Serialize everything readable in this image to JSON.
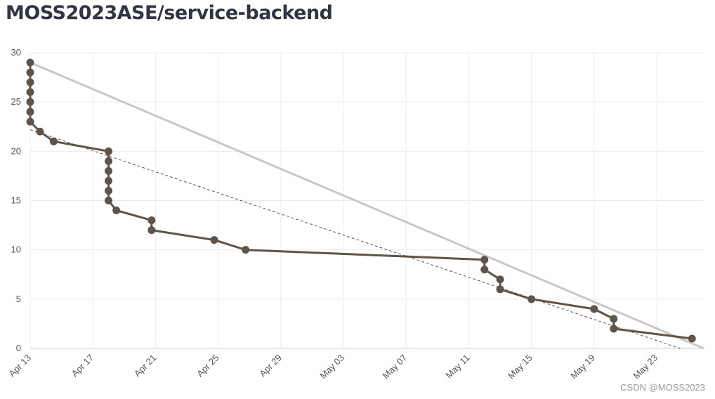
{
  "title": "MOSS2023ASE/service-backend",
  "watermark": "CSDN @MOSS2023",
  "colors": {
    "burndown": "#5e5448",
    "ideal": "#c8c8c8",
    "trend": "#555555",
    "grid": "#ececec",
    "text": "#2f3542"
  },
  "chart_data": {
    "type": "line",
    "title": "",
    "xlabel": "",
    "ylabel": "",
    "x_type": "date",
    "xlim": [
      "2023-04-13",
      "2023-05-26"
    ],
    "ylim": [
      0,
      30
    ],
    "y_ticks": [
      0,
      5,
      10,
      15,
      20,
      25,
      30
    ],
    "x_ticks": [
      {
        "date": "2023-04-13",
        "label": "Apr 13"
      },
      {
        "date": "2023-04-17",
        "label": "Apr 17"
      },
      {
        "date": "2023-04-21",
        "label": "Apr 21"
      },
      {
        "date": "2023-04-25",
        "label": "Apr 25"
      },
      {
        "date": "2023-04-29",
        "label": "Apr 29"
      },
      {
        "date": "2023-05-03",
        "label": "May 03"
      },
      {
        "date": "2023-05-07",
        "label": "May 07"
      },
      {
        "date": "2023-05-11",
        "label": "May 11"
      },
      {
        "date": "2023-05-15",
        "label": "May 15"
      },
      {
        "date": "2023-05-19",
        "label": "May 19"
      },
      {
        "date": "2023-05-23",
        "label": "May 23"
      }
    ],
    "grid": true,
    "legend": "none",
    "series": [
      {
        "style": "solid-markers",
        "points": [
          {
            "x": "2023-04-13T00:00",
            "y": 29
          },
          {
            "x": "2023-04-13T00:00",
            "y": 28
          },
          {
            "x": "2023-04-13T00:00",
            "y": 27
          },
          {
            "x": "2023-04-13T00:00",
            "y": 26
          },
          {
            "x": "2023-04-13T00:00",
            "y": 25
          },
          {
            "x": "2023-04-13T00:00",
            "y": 24
          },
          {
            "x": "2023-04-13T00:00",
            "y": 23
          },
          {
            "x": "2023-04-13T15:00",
            "y": 22
          },
          {
            "x": "2023-04-14T12:00",
            "y": 21
          },
          {
            "x": "2023-04-18T00:00",
            "y": 20
          },
          {
            "x": "2023-04-18T00:00",
            "y": 19
          },
          {
            "x": "2023-04-18T00:00",
            "y": 18
          },
          {
            "x": "2023-04-18T00:00",
            "y": 17
          },
          {
            "x": "2023-04-18T00:00",
            "y": 16
          },
          {
            "x": "2023-04-18T00:00",
            "y": 15
          },
          {
            "x": "2023-04-18T12:00",
            "y": 14
          },
          {
            "x": "2023-04-20T18:00",
            "y": 13
          },
          {
            "x": "2023-04-20T18:00",
            "y": 12
          },
          {
            "x": "2023-04-24T18:00",
            "y": 11
          },
          {
            "x": "2023-04-26T18:00",
            "y": 10
          },
          {
            "x": "2023-05-12T00:00",
            "y": 9
          },
          {
            "x": "2023-05-12T00:00",
            "y": 8
          },
          {
            "x": "2023-05-13T00:00",
            "y": 7
          },
          {
            "x": "2023-05-13T00:00",
            "y": 6
          },
          {
            "x": "2023-05-15T00:00",
            "y": 5
          },
          {
            "x": "2023-05-19T00:00",
            "y": 4
          },
          {
            "x": "2023-05-20T06:00",
            "y": 3
          },
          {
            "x": "2023-05-20T06:00",
            "y": 2
          },
          {
            "x": "2023-05-25T06:00",
            "y": 1
          }
        ]
      },
      {
        "style": "ideal-line",
        "points": [
          {
            "x": "2023-04-13T00:00",
            "y": 29
          },
          {
            "x": "2023-05-26T00:00",
            "y": 0
          }
        ]
      },
      {
        "style": "dashed-trend",
        "points": [
          {
            "x": "2023-04-13T00:00",
            "y": 22.2
          },
          {
            "x": "2023-05-24T12:00",
            "y": 0
          }
        ]
      }
    ]
  }
}
